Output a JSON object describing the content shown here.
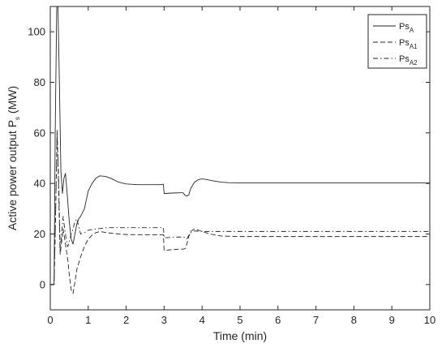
{
  "chart_data": {
    "type": "line",
    "title": "",
    "xlabel": "Time (min)",
    "ylabel_main": "Active power output P",
    "ylabel_sub": "s",
    "ylabel_unit": " (MW)",
    "xlim": [
      0,
      10
    ],
    "ylim": [
      -10,
      110
    ],
    "xticks": [
      0,
      1,
      2,
      3,
      4,
      5,
      6,
      7,
      8,
      9,
      10
    ],
    "yticks": [
      0,
      20,
      40,
      60,
      80,
      100
    ],
    "grid": false,
    "legend_position": "top-right",
    "series": [
      {
        "name": "PsA",
        "name_main": "Ps",
        "name_sub": "A",
        "style": "solid",
        "x": [
          0,
          0.1,
          0.13,
          0.17,
          0.2,
          0.24,
          0.28,
          0.32,
          0.36,
          0.4,
          0.45,
          0.5,
          0.55,
          0.6,
          0.65,
          0.7,
          0.75,
          0.8,
          0.9,
          1.0,
          1.1,
          1.2,
          1.3,
          1.45,
          1.6,
          1.8,
          2.0,
          2.3,
          2.6,
          2.9,
          2.98,
          3.0,
          3.2,
          3.4,
          3.5,
          3.55,
          3.6,
          3.65,
          3.7,
          3.8,
          3.9,
          4.0,
          4.1,
          4.3,
          4.5,
          4.7,
          5.0,
          5.5,
          6,
          7,
          8,
          9,
          10
        ],
        "y": [
          0,
          0,
          60,
          110,
          112,
          80,
          45,
          36,
          42,
          44,
          35,
          25,
          18,
          16,
          20,
          24,
          26,
          27,
          30,
          37,
          40,
          42,
          43,
          42.8,
          42,
          40.5,
          39.8,
          39.5,
          39.5,
          39.5,
          39.7,
          36,
          36.2,
          36.3,
          36.3,
          35.3,
          35,
          35.5,
          38,
          40.5,
          41.5,
          41.8,
          41.6,
          41,
          40.5,
          40.3,
          40.2,
          40.2,
          40.2,
          40.2,
          40.2,
          40.2,
          40.2
        ]
      },
      {
        "name": "PsA1",
        "name_main": "Ps",
        "name_sub": "A1",
        "style": "dashed",
        "x": [
          0,
          0.1,
          0.14,
          0.18,
          0.22,
          0.26,
          0.3,
          0.34,
          0.38,
          0.42,
          0.46,
          0.5,
          0.55,
          0.6,
          0.65,
          0.7,
          0.8,
          0.9,
          1.0,
          1.1,
          1.2,
          1.3,
          1.5,
          1.8,
          2.0,
          2.5,
          2.98,
          3.0,
          3.2,
          3.4,
          3.5,
          3.55,
          3.6,
          3.65,
          3.7,
          3.8,
          4.0,
          4.2,
          4.5,
          5,
          6,
          7,
          8,
          9,
          10
        ],
        "y": [
          0,
          0,
          28,
          61,
          38,
          12,
          17,
          22,
          18,
          14,
          10,
          4,
          -2,
          -3.5,
          1,
          6,
          11,
          15,
          18,
          19.5,
          20.5,
          21,
          20.5,
          20,
          19.8,
          19.7,
          19.7,
          13.5,
          13.8,
          14,
          14,
          14.2,
          16,
          19,
          21,
          22,
          21,
          20,
          19.2,
          19,
          19,
          19,
          19,
          19,
          19
        ]
      },
      {
        "name": "PsA2",
        "name_main": "Ps",
        "name_sub": "A2",
        "style": "dashdot",
        "x": [
          0,
          0.1,
          0.14,
          0.18,
          0.22,
          0.26,
          0.3,
          0.34,
          0.38,
          0.42,
          0.46,
          0.5,
          0.55,
          0.6,
          0.65,
          0.7,
          0.75,
          0.8,
          0.9,
          1.0,
          1.2,
          1.5,
          2.0,
          2.5,
          2.98,
          3.0,
          3.2,
          3.4,
          3.5,
          3.55,
          3.6,
          3.65,
          3.7,
          3.8,
          4.0,
          4.5,
          5,
          6,
          7,
          8,
          9,
          10
        ],
        "y": [
          0,
          0,
          28,
          59,
          42,
          14,
          20,
          27,
          22,
          18,
          15,
          17,
          20,
          22,
          25,
          26,
          23,
          20,
          20.5,
          21.5,
          22,
          22.5,
          22.5,
          22.5,
          22.5,
          18.5,
          18.7,
          18.8,
          18.8,
          18.5,
          18,
          19.5,
          20.5,
          21.2,
          21,
          21,
          21,
          21,
          21,
          21,
          21,
          21
        ]
      }
    ]
  }
}
